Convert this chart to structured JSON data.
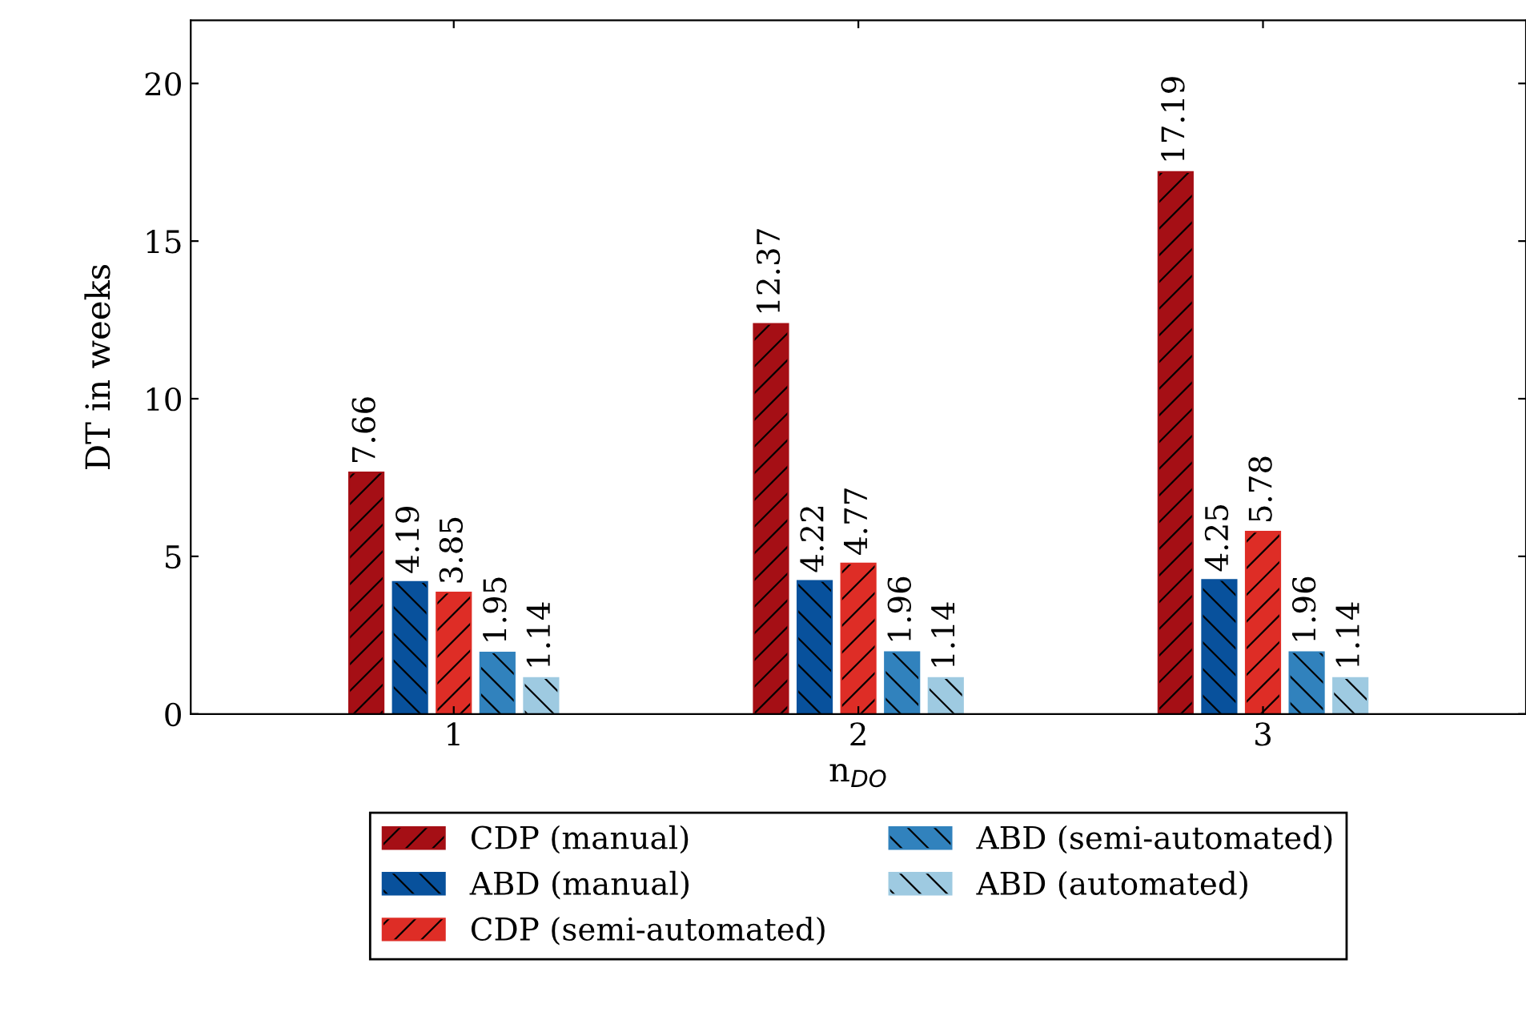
{
  "chart_data": {
    "type": "bar",
    "xlabel": "n$_{DO}$",
    "ylabel": "DT in weeks",
    "categories": [
      "1",
      "2",
      "3"
    ],
    "series": [
      {
        "name": "CDP (manual)",
        "color": "#a50f15",
        "values": [
          7.66,
          12.37,
          17.19
        ]
      },
      {
        "name": "ABD (manual)",
        "color": "#08519c",
        "values": [
          4.19,
          4.22,
          4.25
        ]
      },
      {
        "name": "CDP (semi-automated)",
        "color": "#de2d26",
        "values": [
          3.85,
          4.77,
          5.78
        ]
      },
      {
        "name": "ABD (semi-automated)",
        "color": "#3182bd",
        "values": [
          1.95,
          1.96,
          1.96
        ]
      },
      {
        "name": "ABD (automated)",
        "color": "#9ecae1",
        "values": [
          1.14,
          1.14,
          1.14
        ]
      }
    ],
    "ylim": [
      0,
      22
    ],
    "yticks": [
      0,
      5,
      10,
      15,
      20
    ],
    "data_labels": true,
    "grid": false,
    "legend": "bottom"
  }
}
